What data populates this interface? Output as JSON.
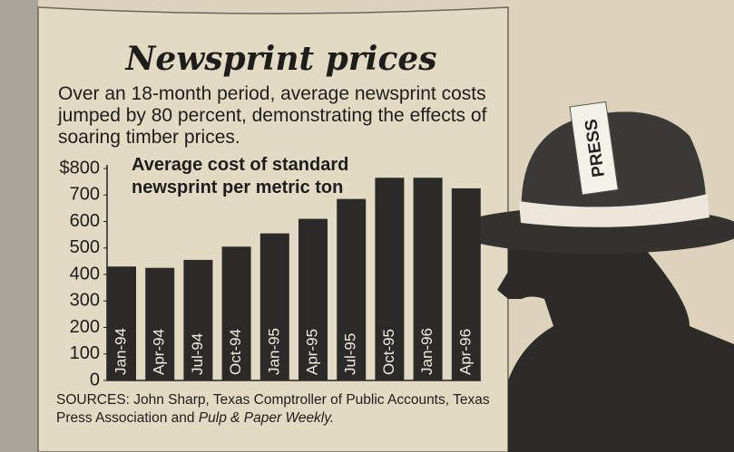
{
  "chart_data": {
    "type": "bar",
    "title": "Newsprint prices",
    "subtitle": "Over an 18-month period, average newsprint costs jumped by 80 percent, demonstrating the effects of soaring timber prices.",
    "chart_title": "Average cost of standard newsprint per metric ton",
    "categories": [
      "Jan-94",
      "Apr-94",
      "Jul-94",
      "Oct-94",
      "Jan-95",
      "Apr-95",
      "Jul-95",
      "Oct-95",
      "Jan-96",
      "Apr-96"
    ],
    "values": [
      430,
      425,
      455,
      505,
      555,
      610,
      685,
      765,
      765,
      725
    ],
    "color": "#2b2a28",
    "ylim": [
      0,
      800
    ],
    "yticks": [
      0,
      100,
      200,
      300,
      400,
      500,
      600,
      700,
      {
        "value": 800,
        "label": "$800"
      }
    ],
    "source": "SOURCES: John Sharp, Texas Comptroller of Public Accounts, Texas Press Association and",
    "source_publication": "Pulp & Paper Weekly."
  },
  "illustration": {
    "label": "PRESS"
  }
}
